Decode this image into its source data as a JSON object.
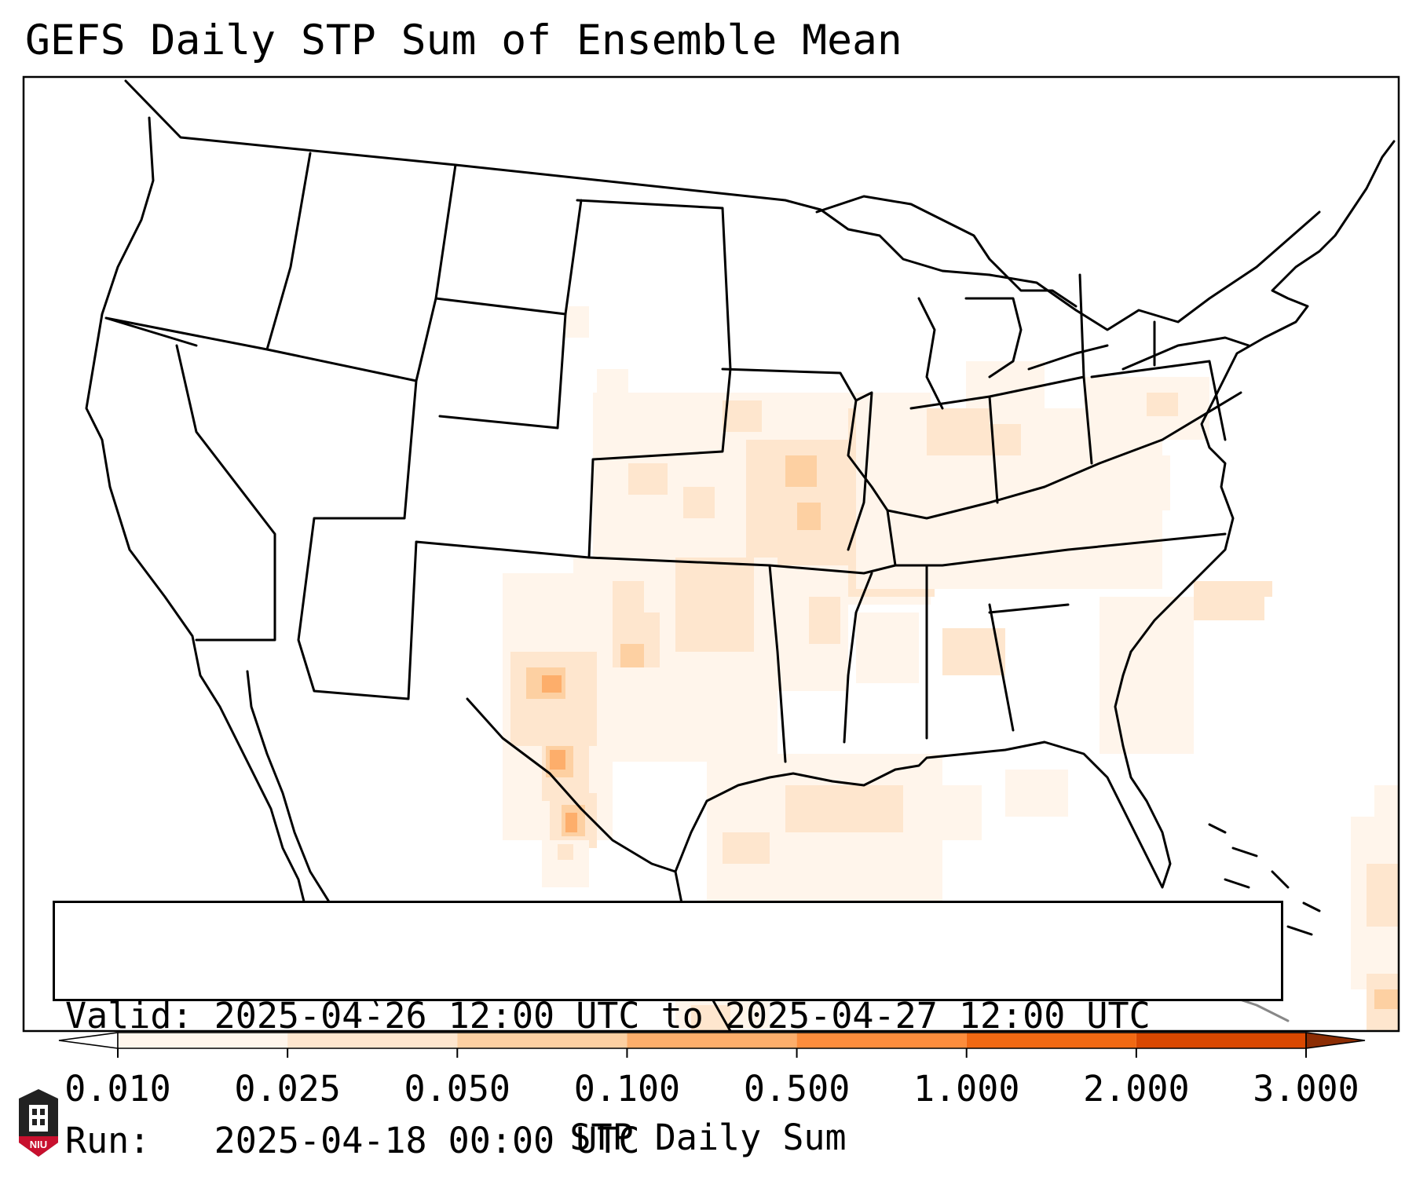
{
  "title": "GEFS Daily STP Sum of Ensemble Mean",
  "info_box": {
    "valid_line": "Valid: 2025-04-26 12:00 UTC to 2025-04-27 12:00 UTC",
    "run_line": "Run:   2025-04-18 00:00 UTC"
  },
  "colorbar": {
    "label": "STP Daily Sum",
    "ticks": [
      "0.010",
      "0.025",
      "0.050",
      "0.100",
      "0.500",
      "1.000",
      "2.000",
      "3.000"
    ],
    "colors": [
      "#fff5eb",
      "#fee6ce",
      "#fdd0a2",
      "#fdae6b",
      "#fd8d3c",
      "#f16913",
      "#d94801",
      "#8c2d04"
    ],
    "under_color": "#ffffff",
    "over_color": "#8c2d04",
    "extend": "both"
  },
  "logo": {
    "text": "NIU"
  },
  "field_colors": [
    "#fff5eb",
    "#fee6ce",
    "#fdd0a2",
    "#fdae6b",
    "#fd8d3c"
  ]
}
